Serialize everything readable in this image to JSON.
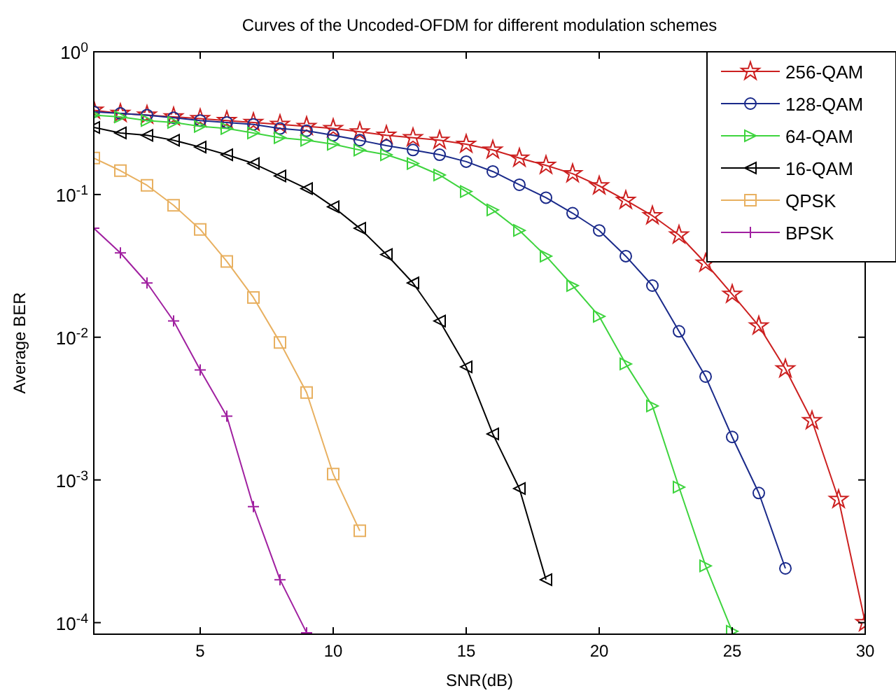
{
  "chart_data": {
    "type": "line",
    "title": "Curves of the Uncoded-OFDM for different modulation schemes",
    "xlabel": "SNR(dB)",
    "ylabel": "Average BER",
    "log": "y",
    "grid": false,
    "legend": "top right",
    "line_style": "solid",
    "xlim": [
      1,
      30
    ],
    "xticks": [
      5,
      10,
      15,
      20,
      25,
      30
    ],
    "ylim": [
      8.3e-05,
      1
    ],
    "yticks": [
      {
        "value": 1,
        "label": "10$^{0}$"
      },
      {
        "value": 0.1,
        "label": "10$^{-1}$"
      },
      {
        "value": 0.01,
        "label": "10$^{-2}$"
      },
      {
        "value": 0.001,
        "label": "10$^{-3}$"
      },
      {
        "value": 0.0001,
        "label": "10$^{-4}$"
      }
    ],
    "series": [
      {
        "name": "256-QAM",
        "color": "#cc2020",
        "marker": "star",
        "x": [
          1,
          2,
          3,
          4,
          5,
          6,
          7,
          8,
          9,
          10,
          11,
          12,
          13,
          14,
          15,
          16,
          17,
          18,
          19,
          20,
          21,
          22,
          23,
          24,
          25,
          26,
          27,
          28,
          29,
          30
        ],
        "values": [
          0.39,
          0.37,
          0.36,
          0.35,
          0.34,
          0.33,
          0.32,
          0.31,
          0.3,
          0.29,
          0.275,
          0.26,
          0.25,
          0.24,
          0.225,
          0.205,
          0.18,
          0.16,
          0.14,
          0.115,
          0.091,
          0.071,
          0.052,
          0.033,
          0.02,
          0.012,
          0.006,
          0.0026,
          0.00073,
          0.0001
        ]
      },
      {
        "name": "128-QAM",
        "color": "#1a2a8a",
        "marker": "circle",
        "x": [
          1,
          2,
          3,
          4,
          5,
          6,
          7,
          8,
          9,
          10,
          11,
          12,
          13,
          14,
          15,
          16,
          17,
          18,
          19,
          20,
          21,
          22,
          23,
          24,
          25,
          26,
          27
        ],
        "values": [
          0.38,
          0.37,
          0.36,
          0.345,
          0.33,
          0.32,
          0.31,
          0.29,
          0.28,
          0.26,
          0.24,
          0.22,
          0.205,
          0.19,
          0.17,
          0.145,
          0.117,
          0.095,
          0.074,
          0.056,
          0.037,
          0.023,
          0.011,
          0.0053,
          0.002,
          0.00081,
          0.00024
        ]
      },
      {
        "name": "64-QAM",
        "color": "#3ed43e",
        "marker": "triangle-right",
        "x": [
          1,
          2,
          3,
          4,
          5,
          6,
          7,
          8,
          9,
          10,
          11,
          12,
          13,
          14,
          15,
          16,
          17,
          18,
          19,
          20,
          21,
          22,
          23,
          24,
          25
        ],
        "values": [
          0.36,
          0.35,
          0.33,
          0.32,
          0.3,
          0.29,
          0.27,
          0.25,
          0.24,
          0.225,
          0.205,
          0.19,
          0.165,
          0.137,
          0.105,
          0.078,
          0.056,
          0.037,
          0.023,
          0.014,
          0.0065,
          0.0033,
          0.00089,
          0.00025,
          8.7e-05
        ]
      },
      {
        "name": "16-QAM",
        "color": "#000000",
        "marker": "triangle-left",
        "x": [
          1,
          2,
          3,
          4,
          5,
          6,
          7,
          8,
          9,
          10,
          11,
          12,
          13,
          14,
          15,
          16,
          17,
          18
        ],
        "values": [
          0.295,
          0.27,
          0.26,
          0.24,
          0.215,
          0.19,
          0.165,
          0.135,
          0.11,
          0.082,
          0.058,
          0.038,
          0.024,
          0.013,
          0.0062,
          0.0021,
          0.00087,
          0.0002
        ]
      },
      {
        "name": "QPSK",
        "color": "#e8b060",
        "marker": "square",
        "x": [
          1,
          2,
          3,
          4,
          5,
          6,
          7,
          8,
          9,
          10,
          11
        ],
        "values": [
          0.18,
          0.147,
          0.116,
          0.084,
          0.057,
          0.034,
          0.019,
          0.0092,
          0.0041,
          0.0011,
          0.00044
        ]
      },
      {
        "name": "BPSK",
        "color": "#a020a0",
        "marker": "cross",
        "x": [
          1,
          2,
          3,
          4,
          5,
          6,
          7,
          8,
          9
        ],
        "values": [
          0.058,
          0.039,
          0.024,
          0.013,
          0.0059,
          0.0028,
          0.00065,
          0.0002,
          8.5e-05
        ]
      }
    ]
  }
}
